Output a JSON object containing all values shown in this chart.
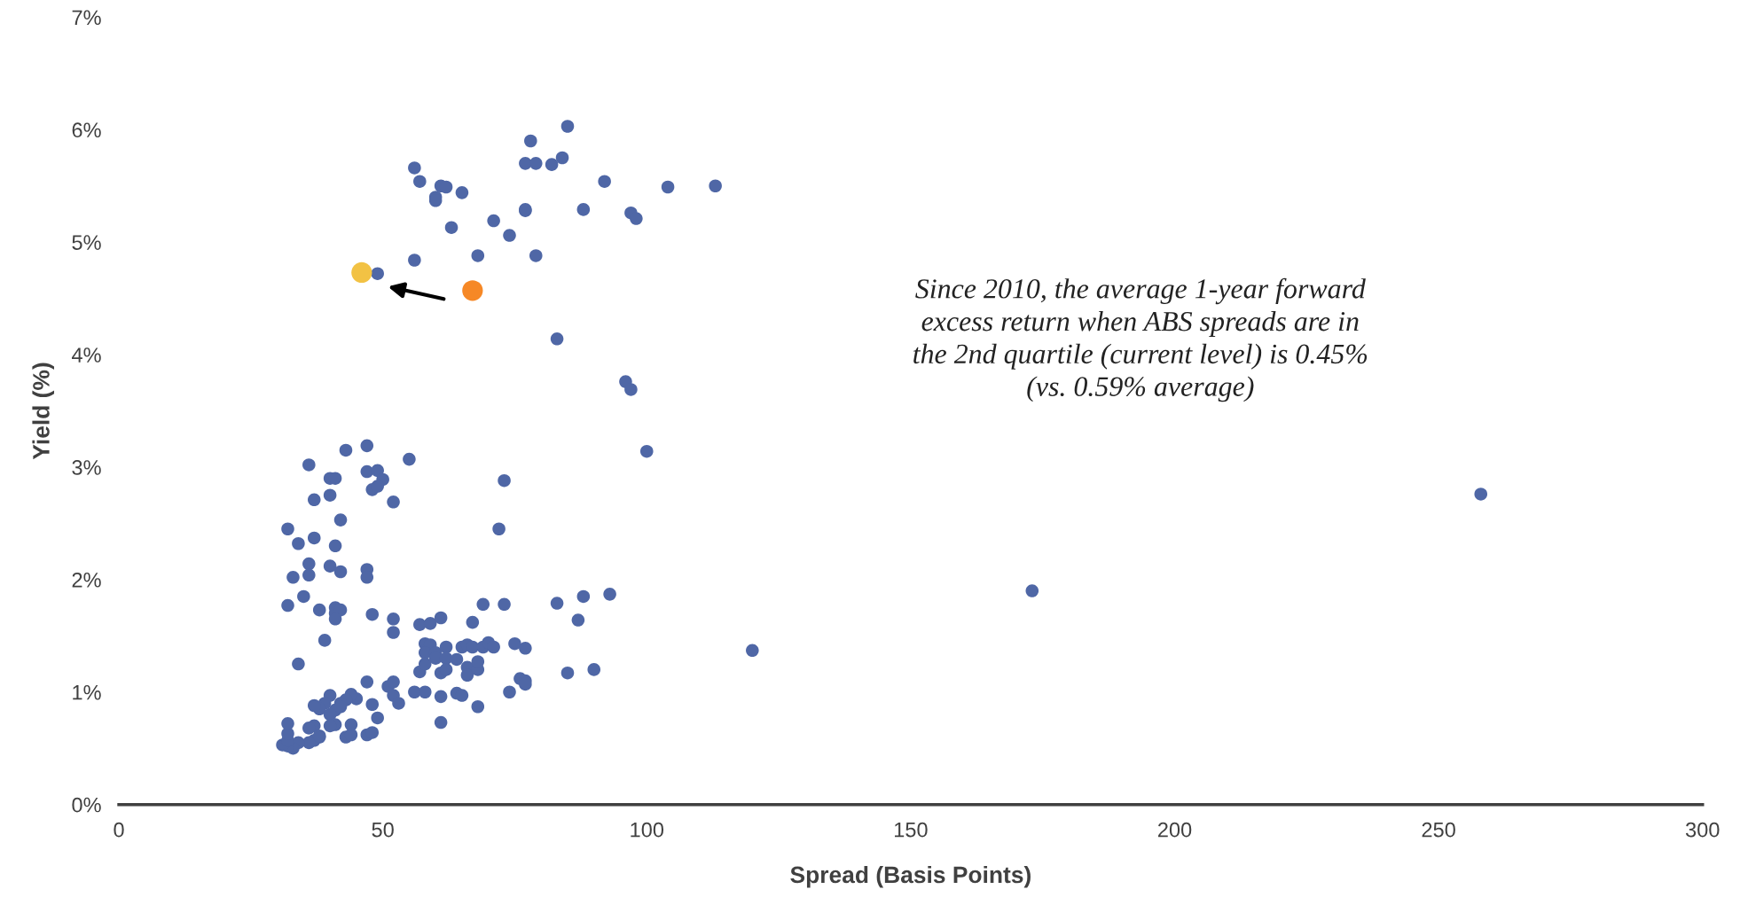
{
  "chart_data": {
    "type": "scatter",
    "xlabel": "Spread (Basis Points)",
    "ylabel": "Yield (%)",
    "xlim": [
      0,
      300
    ],
    "xticks": [
      0,
      50,
      100,
      150,
      200,
      250,
      300
    ],
    "ylim": [
      0,
      7
    ],
    "yticks": [
      {
        "value": 0,
        "label": "0%"
      },
      {
        "value": 1,
        "label": "1%"
      },
      {
        "value": 2,
        "label": "2%"
      },
      {
        "value": 3,
        "label": "3%"
      },
      {
        "value": 4,
        "label": "4%"
      },
      {
        "value": 5,
        "label": "5%"
      },
      {
        "value": 6,
        "label": "6%"
      },
      {
        "value": 7,
        "label": "7%"
      }
    ],
    "grid": false,
    "legend": false,
    "marker": "circle",
    "annotations": [
      "Since 2010, the average 1-year forward\nexcess return when ABS spreads are in\nthe 2nd quartile (current level) is 0.45%\n(vs. 0.59% average)"
    ],
    "series": [
      {
        "color": "#4f67a6",
        "x": [
          85,
          78,
          77,
          79,
          82,
          84,
          56,
          57,
          61,
          62,
          60,
          60,
          65,
          63,
          71,
          74,
          77,
          77,
          88,
          92,
          104,
          113,
          97,
          98,
          56,
          68,
          79,
          49,
          83,
          96,
          97,
          100,
          258,
          173,
          120,
          36,
          43,
          47,
          55,
          47,
          49,
          50,
          48,
          49,
          52,
          73,
          40,
          41,
          37,
          40,
          42,
          32,
          37,
          34,
          41,
          72,
          36,
          40,
          33,
          36,
          42,
          47,
          47,
          32,
          35,
          38,
          41,
          41,
          42,
          41,
          48,
          52,
          52,
          39,
          34,
          57,
          59,
          61,
          67,
          69,
          73,
          83,
          88,
          93,
          87,
          58,
          59,
          58,
          60,
          62,
          60,
          62,
          64,
          65,
          66,
          67,
          69,
          70,
          71,
          75,
          77,
          57,
          58,
          61,
          62,
          66,
          66,
          68,
          68,
          76,
          77,
          77,
          85,
          90,
          56,
          58,
          61,
          64,
          65,
          68,
          74,
          61,
          47,
          51,
          52,
          52,
          53,
          48,
          45,
          49,
          44,
          43,
          42,
          40,
          39,
          38,
          37,
          41,
          40,
          42,
          41,
          40,
          37,
          36,
          38,
          37,
          36,
          34,
          33,
          32,
          31,
          32,
          32,
          32,
          38,
          43,
          44,
          47,
          48,
          44
        ],
        "values": [
          6.03,
          5.9,
          5.7,
          5.7,
          5.69,
          5.75,
          5.66,
          5.54,
          5.5,
          5.49,
          5.4,
          5.37,
          5.44,
          5.13,
          5.19,
          5.06,
          5.28,
          5.29,
          5.29,
          5.54,
          5.49,
          5.5,
          5.26,
          5.21,
          4.84,
          4.88,
          4.88,
          4.72,
          4.14,
          3.76,
          3.69,
          3.14,
          2.76,
          1.9,
          1.37,
          3.02,
          3.15,
          3.19,
          3.07,
          2.96,
          2.97,
          2.89,
          2.8,
          2.83,
          2.69,
          2.88,
          2.9,
          2.9,
          2.71,
          2.75,
          2.53,
          2.45,
          2.37,
          2.32,
          2.3,
          2.45,
          2.14,
          2.12,
          2.02,
          2.04,
          2.07,
          2.09,
          2.02,
          1.77,
          1.85,
          1.73,
          1.75,
          1.7,
          1.73,
          1.65,
          1.69,
          1.65,
          1.53,
          1.46,
          1.25,
          1.6,
          1.61,
          1.66,
          1.62,
          1.78,
          1.78,
          1.79,
          1.85,
          1.87,
          1.64,
          1.43,
          1.42,
          1.35,
          1.35,
          1.4,
          1.3,
          1.3,
          1.29,
          1.4,
          1.42,
          1.4,
          1.4,
          1.44,
          1.4,
          1.43,
          1.39,
          1.18,
          1.25,
          1.17,
          1.2,
          1.22,
          1.15,
          1.2,
          1.27,
          1.12,
          1.1,
          1.07,
          1.17,
          1.2,
          1.0,
          1.0,
          0.96,
          0.99,
          0.97,
          0.87,
          1.0,
          0.73,
          1.09,
          1.05,
          1.09,
          0.97,
          0.9,
          0.89,
          0.94,
          0.77,
          0.98,
          0.93,
          0.9,
          0.97,
          0.9,
          0.85,
          0.88,
          0.84,
          0.8,
          0.87,
          0.71,
          0.7,
          0.7,
          0.68,
          0.6,
          0.57,
          0.55,
          0.55,
          0.5,
          0.52,
          0.53,
          0.57,
          0.63,
          0.72,
          0.61,
          0.6,
          0.62,
          0.62,
          0.64,
          0.71
        ]
      },
      {
        "color": "#f2c244",
        "x": [
          46
        ],
        "values": [
          4.73
        ]
      },
      {
        "color": "#f68826",
        "x": [
          67
        ],
        "values": [
          4.57
        ]
      }
    ]
  }
}
